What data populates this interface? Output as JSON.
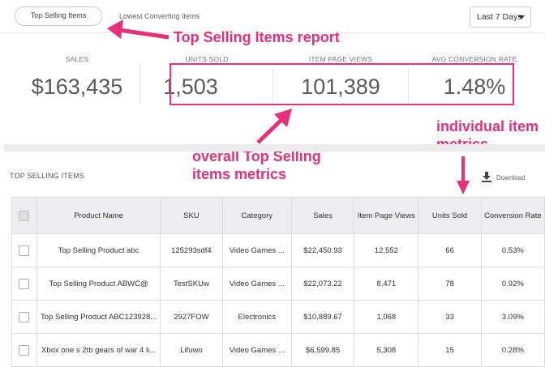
{
  "tabs": {
    "active": "Top Selling Items",
    "inactive": "Lowest Converting Items"
  },
  "date_range": {
    "selected": "Last 7 Days"
  },
  "metrics": [
    {
      "label": "SALES",
      "value": "$163,435"
    },
    {
      "label": "UNITS SOLD",
      "value": "1,503"
    },
    {
      "label": "ITEM PAGE VIEWS",
      "value": "101,389"
    },
    {
      "label": "AVG CONVERSION RATE",
      "value": "1.48%"
    }
  ],
  "annotations": {
    "report": "Top Selling Items report",
    "overall_line1": "overall Top Selling",
    "overall_line2": "items metrics",
    "individual_line1": "individual item",
    "individual_line2": "metrics"
  },
  "section": {
    "title": "TOP SELLING ITEMS",
    "download_label": "Download"
  },
  "table": {
    "headers": [
      "Product Name",
      "SKU",
      "Category",
      "Sales",
      "Item Page Views",
      "Units Sold",
      "Conversion Rate"
    ],
    "rows": [
      [
        "Top Selling Product abc",
        "125293sdf4",
        "Video Games ...",
        "$22,450.93",
        "12,552",
        "66",
        "0.53%"
      ],
      [
        "Top Selling Product ABWC@",
        "TestSKUw",
        "Video Games ...",
        "$22,073.22",
        "8,471",
        "78",
        "0.92%"
      ],
      [
        "Top Selling Product ABC123928...",
        "2927FOW",
        "Electronics",
        "$10,889.67",
        "1,068",
        "33",
        "3.09%"
      ],
      [
        "Xbox one s 2tb gears of war 4 li...",
        "Lifuwo",
        "Video Games ...",
        "$6,599.85",
        "5,308",
        "15",
        "0.28%"
      ]
    ]
  },
  "colors": {
    "accent": "#e8307a"
  }
}
